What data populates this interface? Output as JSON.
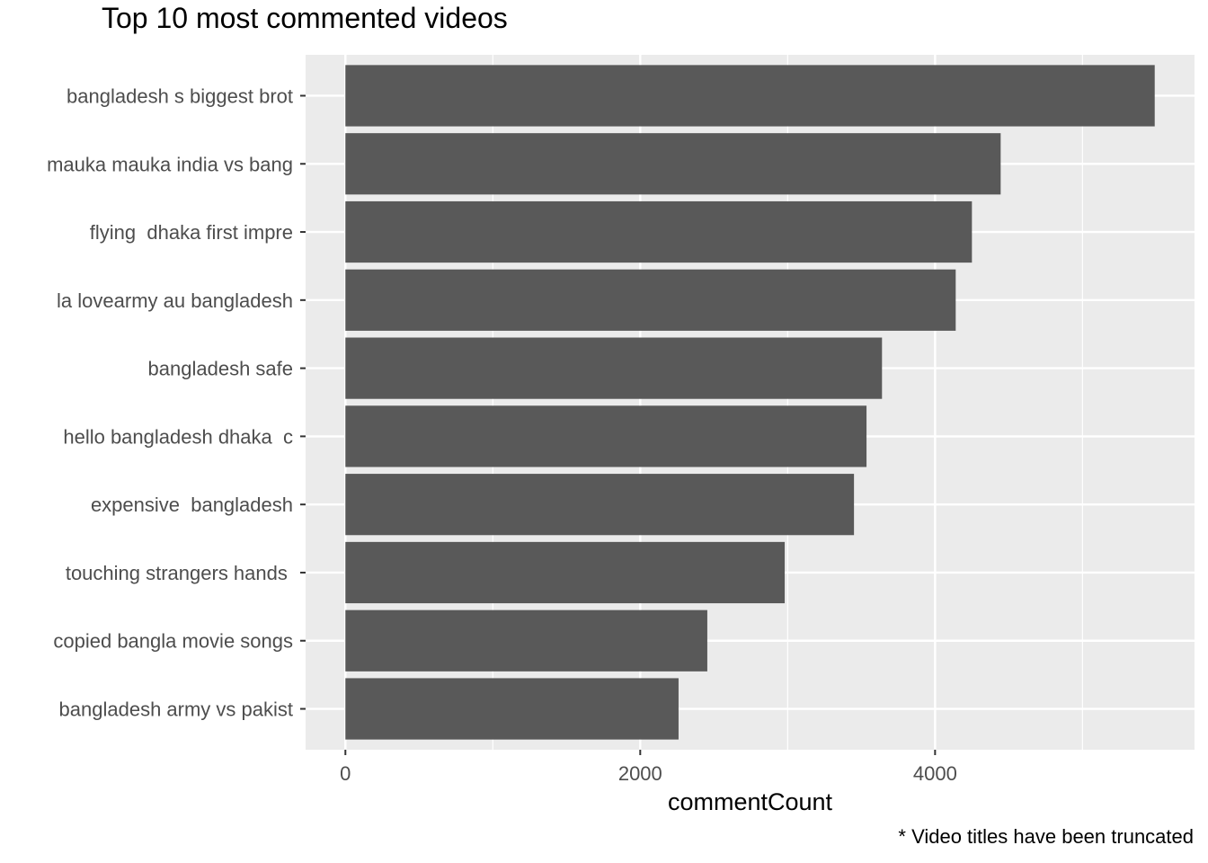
{
  "chart_data": {
    "type": "bar",
    "orientation": "horizontal",
    "title": "Top 10 most commented videos",
    "xlabel": "commentCount",
    "ylabel": "",
    "caption": "* Video titles have been truncated",
    "categories": [
      "bangladesh s biggest brot",
      "mauka mauka india vs bang",
      "flying  dhaka first impre",
      "la lovearmy au bangladesh",
      "bangladesh safe",
      "hello bangladesh dhaka  c",
      "expensive  bangladesh",
      "touching strangers hands ",
      "copied bangla movie songs",
      "bangladesh army vs pakist"
    ],
    "values": [
      5490,
      4445,
      4250,
      4140,
      3640,
      3535,
      3450,
      2980,
      2455,
      2260
    ],
    "xlim": [
      -270,
      5760
    ],
    "xticks": [
      0,
      2000,
      4000
    ],
    "xtick_labels": [
      "0",
      "2000",
      "4000"
    ],
    "minor_xticks": [
      1000,
      3000,
      5000
    ],
    "grid": true,
    "bar_color": "#595959",
    "panel_background": "#ebebeb",
    "grid_color": "#ffffff"
  }
}
